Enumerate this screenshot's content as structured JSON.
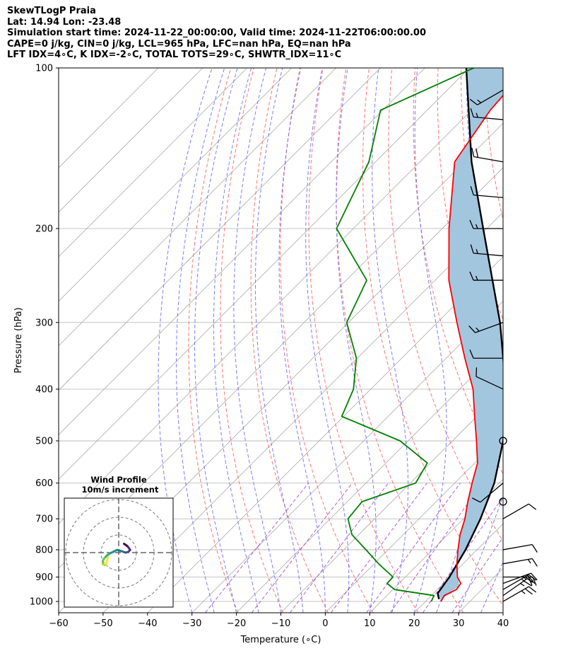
{
  "header": {
    "line1": "SkewTLogP Praia",
    "line2": "Lat: 14.94   Lon: -23.48",
    "line3": "Simulation start time: 2024-11-22_00:00:00, Valid time: 2024-11-22T06:00:00.00",
    "line4": "CAPE=0 j/kg, CIN=0 j/kg, LCL=965 hPa, LFC=nan hPa, EQ=nan hPa",
    "line5": "LFT IDX=4∘C, K IDX=-2∘C, TOTAL TOTS=29∘C, SHWTR_IDX=11∘C"
  },
  "chart_data": {
    "type": "line",
    "xlabel": "Temperature (∘C)",
    "ylabel": "Pressure (hPa)",
    "xlim": [
      -60,
      40
    ],
    "ylim": [
      1050,
      100
    ],
    "y_scale": "log",
    "skew": "isotherms skewed 45° to the right",
    "grid": true,
    "x_ticks": [
      -60,
      -50,
      -40,
      -30,
      -20,
      -10,
      0,
      10,
      20,
      30,
      40
    ],
    "y_ticks": [
      100,
      200,
      300,
      400,
      500,
      600,
      700,
      800,
      900,
      1000
    ],
    "colors": {
      "temperature": "#ff0000",
      "dewpoint": "#008000",
      "parcel": "#000000",
      "cape_fill": "#a3c6df",
      "dry_adiabats": "#ff6666",
      "moist_adiabats": "#6666ff",
      "mixing_ratio": "#9933cc",
      "isotherms": "#aaaaaa"
    },
    "series": [
      {
        "key": "temperature",
        "pressure": [
          1000,
          975,
          950,
          925,
          900,
          850,
          800,
          750,
          700,
          650,
          600,
          550,
          500,
          450,
          400,
          350,
          300,
          250,
          200,
          150,
          120,
          100
        ],
        "values": [
          23.5,
          22.9,
          24.3,
          23.9,
          21.7,
          18.6,
          15.7,
          12.8,
          10.3,
          7.1,
          3.9,
          0.6,
          -4.6,
          -10.5,
          -17.0,
          -25.8,
          -35.6,
          -46.9,
          -58.5,
          -72.2,
          -75.8,
          -77.0
        ]
      },
      {
        "key": "dewpoint",
        "pressure": [
          1000,
          975,
          950,
          925,
          900,
          850,
          800,
          750,
          700,
          650,
          600,
          550,
          500,
          450,
          400,
          350,
          300,
          250,
          200,
          150,
          120,
          100
        ],
        "values": [
          21.3,
          20.6,
          10.4,
          7.3,
          7.2,
          1.0,
          -5.0,
          -11.5,
          -16.0,
          -16.7,
          -8.8,
          -10.7,
          -21.8,
          -40.4,
          -43.9,
          -50.2,
          -60.4,
          -65.4,
          -83.8,
          -91.5,
          -100.5,
          -89.0
        ]
      },
      {
        "key": "parcel",
        "pressure": [
          990,
          965,
          900,
          800,
          700,
          600,
          500,
          400,
          300,
          200,
          150,
          100
        ],
        "values": [
          22.5,
          20.9,
          19.9,
          17.4,
          13.8,
          8.9,
          1.4,
          -9.6,
          -25.9,
          -50.8,
          -68.4,
          -90.7
        ]
      }
    ],
    "wind_barbs": [
      {
        "pressure": 1000,
        "speed": 25,
        "direction": 60
      },
      {
        "pressure": 975,
        "speed": 25,
        "direction": 55
      },
      {
        "pressure": 950,
        "speed": 25,
        "direction": 60
      },
      {
        "pressure": 925,
        "speed": 25,
        "direction": 70
      },
      {
        "pressure": 900,
        "speed": 20,
        "direction": 90
      },
      {
        "pressure": 850,
        "speed": 15,
        "direction": 80
      },
      {
        "pressure": 800,
        "speed": 10,
        "direction": 80
      },
      {
        "pressure": 700,
        "speed": 10,
        "direction": 60
      },
      {
        "pressure": 650,
        "speed": 0,
        "direction": 0
      },
      {
        "pressure": 600,
        "speed": 10,
        "direction": 230
      },
      {
        "pressure": 500,
        "speed": 0,
        "direction": 0
      },
      {
        "pressure": 400,
        "speed": 10,
        "direction": 295
      },
      {
        "pressure": 350,
        "speed": 10,
        "direction": 270
      },
      {
        "pressure": 300,
        "speed": 15,
        "direction": 250
      },
      {
        "pressure": 250,
        "speed": 15,
        "direction": 270
      },
      {
        "pressure": 225,
        "speed": 15,
        "direction": 275
      },
      {
        "pressure": 200,
        "speed": 15,
        "direction": 270
      },
      {
        "pressure": 175,
        "speed": 15,
        "direction": 275
      },
      {
        "pressure": 150,
        "speed": 20,
        "direction": 280
      },
      {
        "pressure": 125,
        "speed": 15,
        "direction": 275
      },
      {
        "pressure": 110,
        "speed": 15,
        "direction": 240
      }
    ],
    "inset": {
      "title_line1": "Wind Profile",
      "title_line2": "10m/s increment",
      "type": "hodograph",
      "rings_ms": [
        10,
        20,
        30
      ],
      "colormap": "viridis",
      "u": [
        3.0,
        4.5,
        5.5,
        6.5,
        5.5,
        4.0,
        2.5,
        1.0,
        -1.0,
        -3.0,
        -5.0,
        -6.5,
        -8.0,
        -9.0,
        -9.0,
        -8.0,
        -7.0,
        -6.5,
        -6.0
      ],
      "v": [
        5.0,
        4.0,
        3.0,
        1.5,
        0.5,
        0.0,
        0.5,
        1.0,
        1.5,
        0.5,
        -0.5,
        -1.5,
        -3.0,
        -4.5,
        -6.5,
        -7.0,
        -6.5,
        -4.0,
        -2.5
      ]
    }
  }
}
